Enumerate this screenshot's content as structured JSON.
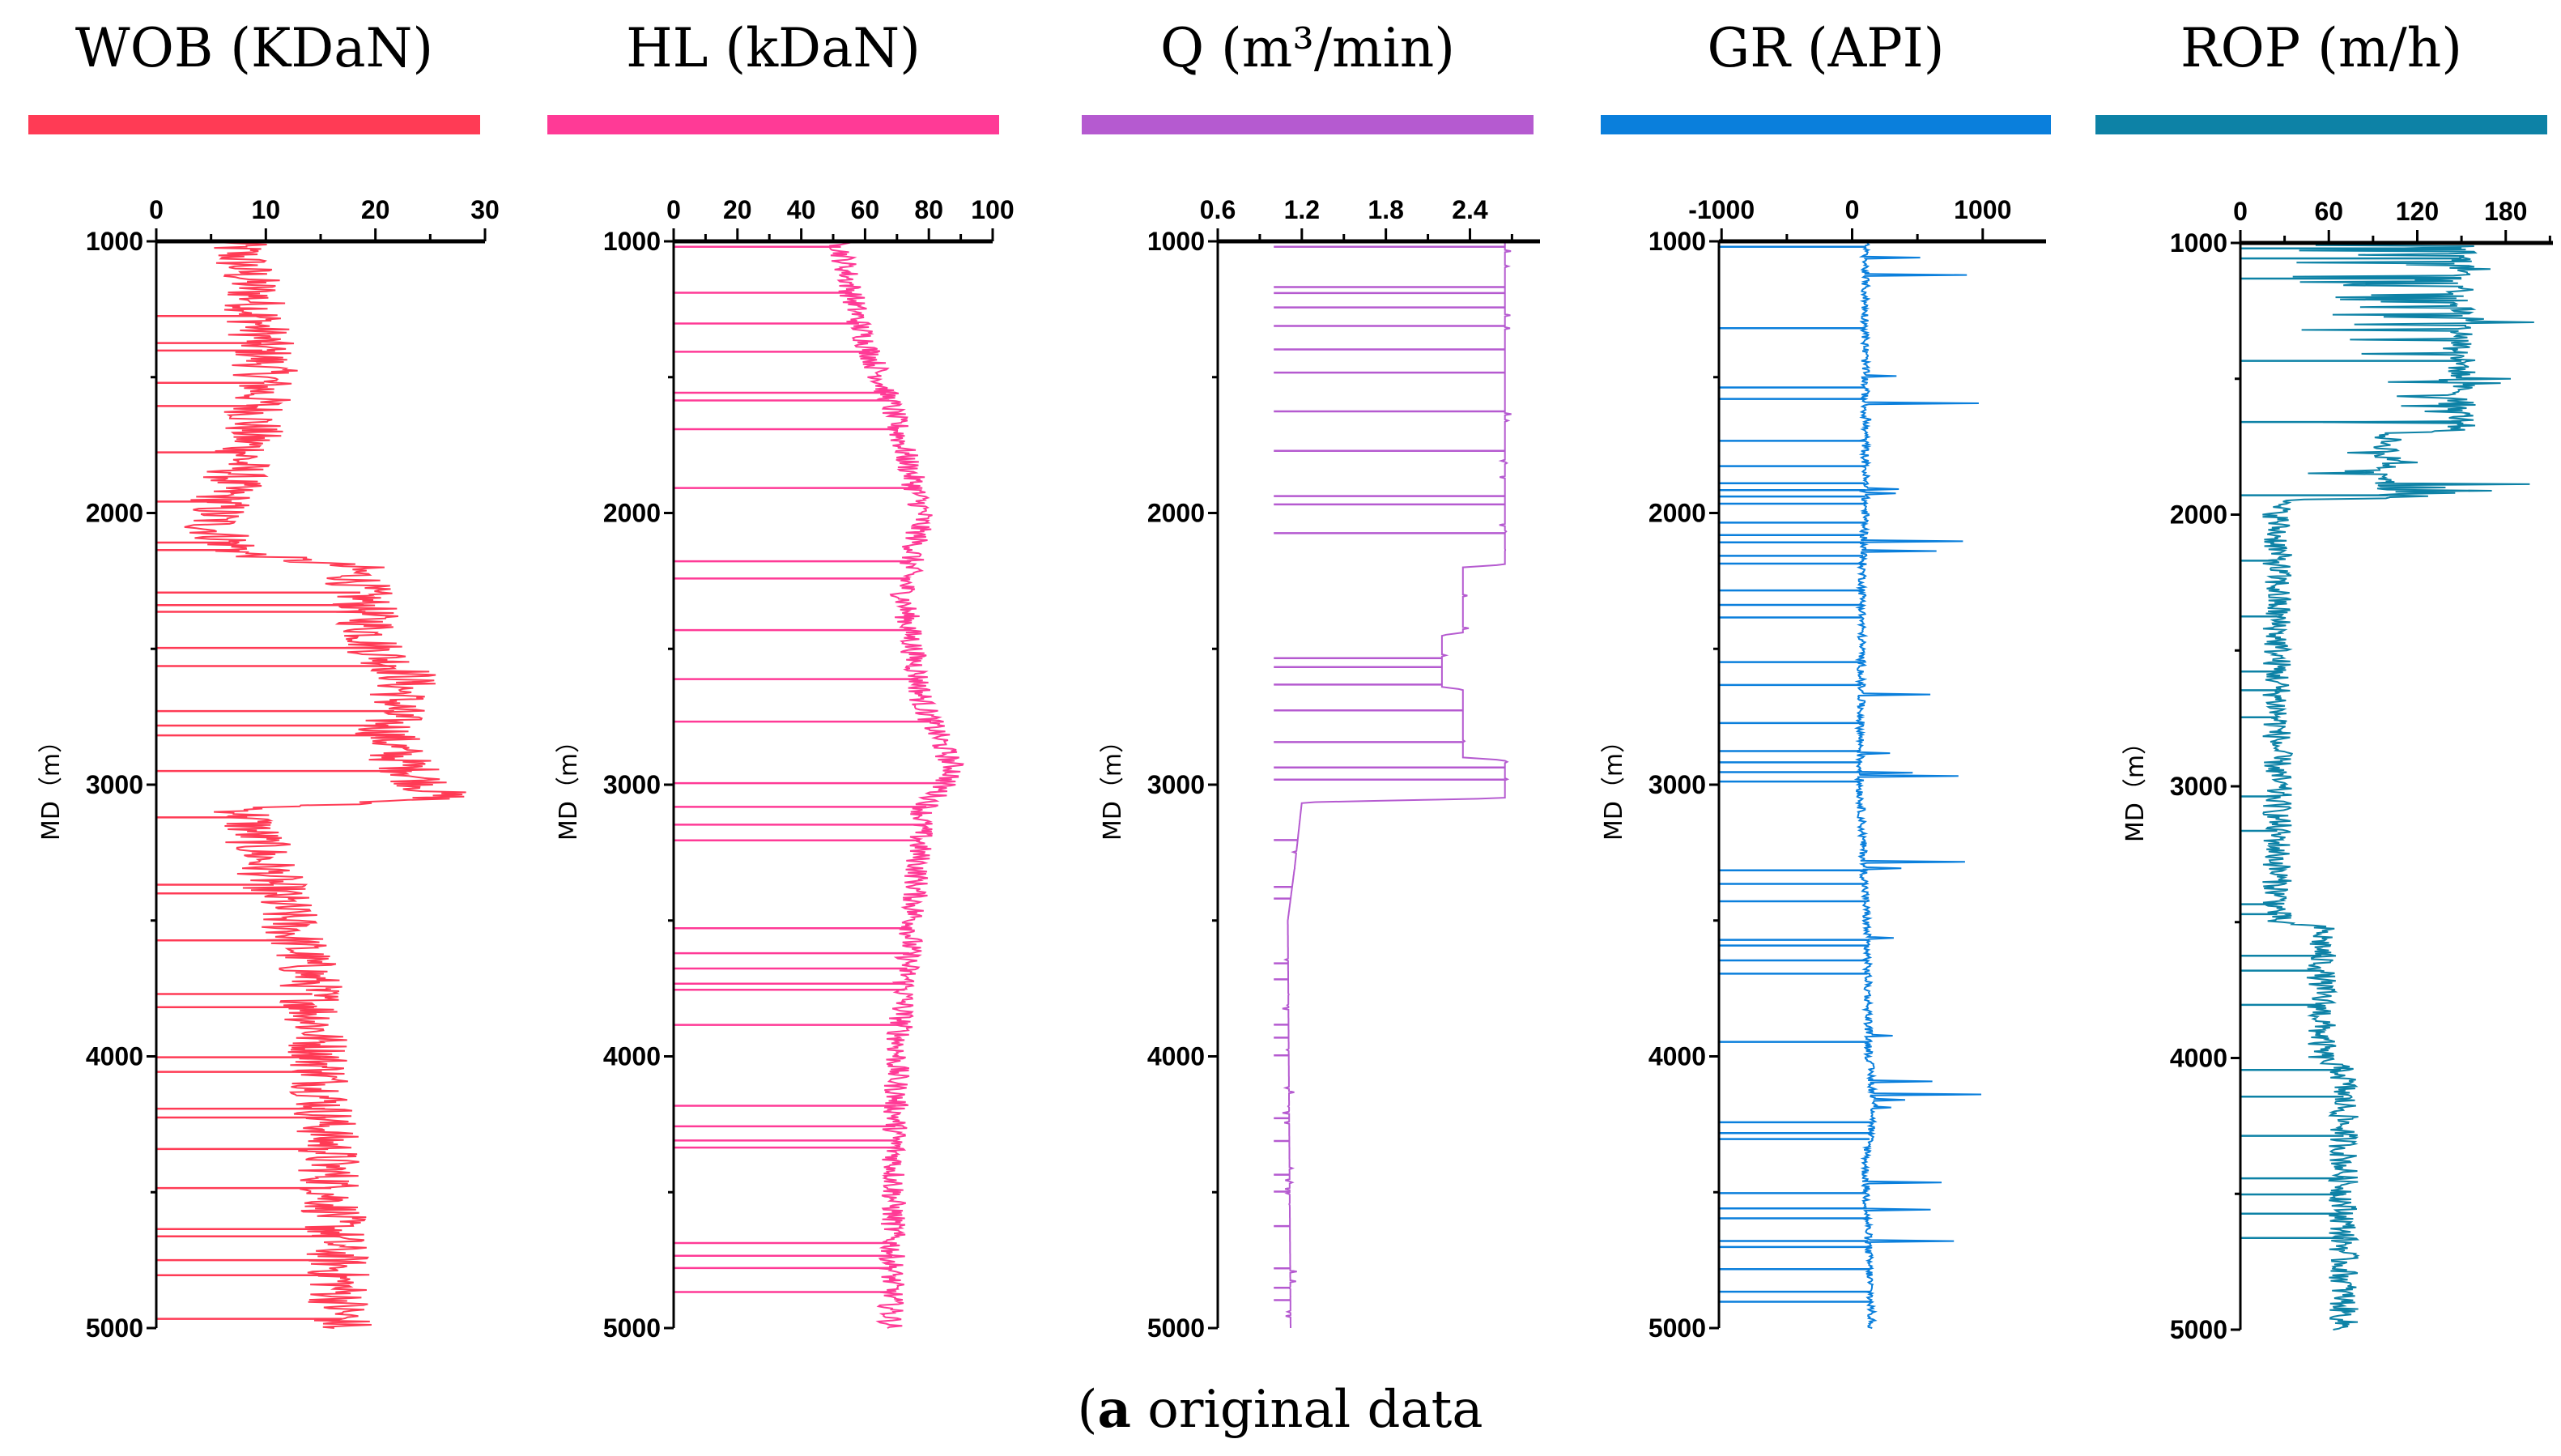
{
  "chart_data": {
    "type": "line",
    "caption_label": "a",
    "caption_text": " original data",
    "ylabel": "MD（m）",
    "ylim": [
      1000,
      5000
    ],
    "yticks": [
      "1000",
      "2000",
      "3000",
      "4000",
      "5000"
    ],
    "tracks": [
      {
        "name": "WOB",
        "title": "WOB (KDaN)",
        "color": "#ff3b55",
        "xlim": [
          0,
          30
        ],
        "xticks": [
          "0",
          "10",
          "20",
          "30"
        ],
        "xtick_values": [
          0,
          10,
          20,
          30
        ],
        "minor_step": 5,
        "profile": [
          [
            1000,
            7
          ],
          [
            1200,
            9
          ],
          [
            1500,
            10
          ],
          [
            1800,
            8
          ],
          [
            1950,
            6
          ],
          [
            2050,
            5
          ],
          [
            2150,
            8
          ],
          [
            2200,
            18
          ],
          [
            2500,
            20
          ],
          [
            2600,
            23
          ],
          [
            2800,
            21
          ],
          [
            2900,
            22
          ],
          [
            3050,
            26
          ],
          [
            3090,
            8
          ],
          [
            3500,
            12
          ],
          [
            3700,
            14
          ],
          [
            4000,
            15
          ],
          [
            4500,
            16
          ],
          [
            5000,
            17
          ]
        ],
        "noise": 3,
        "spike_value": 0
      },
      {
        "name": "HL",
        "title": "HL (kDaN)",
        "color": "#ff3a96",
        "xlim": [
          0,
          100
        ],
        "xticks": [
          "0",
          "20",
          "40",
          "60",
          "80",
          "100"
        ],
        "xtick_values": [
          0,
          20,
          40,
          60,
          80,
          100
        ],
        "minor_step": 10,
        "profile": [
          [
            1000,
            52
          ],
          [
            1300,
            58
          ],
          [
            1600,
            68
          ],
          [
            2000,
            78
          ],
          [
            2300,
            72
          ],
          [
            2700,
            78
          ],
          [
            2950,
            88
          ],
          [
            3100,
            78
          ],
          [
            3500,
            75
          ],
          [
            4000,
            70
          ],
          [
            5000,
            68
          ]
        ],
        "noise": 4,
        "spike_value": 0
      },
      {
        "name": "Q",
        "title": "Q (m³/min)",
        "color": "#b55ad0",
        "xlim": [
          0.6,
          2.9
        ],
        "xticks": [
          "0.6",
          "1.2",
          "1.8",
          "2.4"
        ],
        "xtick_values": [
          0.6,
          1.2,
          1.8,
          2.4
        ],
        "minor_step": 0.3,
        "profile": [
          [
            1000,
            2.65
          ],
          [
            2190,
            2.65
          ],
          [
            2200,
            2.35
          ],
          [
            2440,
            2.35
          ],
          [
            2450,
            2.2
          ],
          [
            2640,
            2.2
          ],
          [
            2650,
            2.35
          ],
          [
            2900,
            2.35
          ],
          [
            2910,
            2.65
          ],
          [
            3050,
            2.65
          ],
          [
            3065,
            1.2
          ],
          [
            3300,
            1.15
          ],
          [
            3500,
            1.1
          ],
          [
            5000,
            1.12
          ]
        ],
        "noise": 0.02,
        "spike_value": 1.0
      },
      {
        "name": "GR",
        "title": "GR (API)",
        "color": "#0a7fdc",
        "xlim": [
          -1020,
          1485
        ],
        "xticks": [
          "-1000",
          "0",
          "1000"
        ],
        "xtick_values": [
          -1000,
          0,
          1000
        ],
        "minor_step": 500,
        "profile": [
          [
            1000,
            100
          ],
          [
            2000,
            100
          ],
          [
            2200,
            80
          ],
          [
            3000,
            60
          ],
          [
            3500,
            110
          ],
          [
            4000,
            130
          ],
          [
            4200,
            170
          ],
          [
            4400,
            100
          ],
          [
            5000,
            150
          ]
        ],
        "noise": 30,
        "spike_value": -1020
      },
      {
        "name": "ROP",
        "title": "ROP (m/h)",
        "color": "#0d82a6",
        "xlim": [
          0,
          212
        ],
        "xticks": [
          "0",
          "60",
          "120",
          "180"
        ],
        "xtick_values": [
          0,
          60,
          120,
          180
        ],
        "minor_step": 30,
        "profile": [
          [
            1000,
            150
          ],
          [
            1690,
            150
          ],
          [
            1700,
            100
          ],
          [
            1940,
            100
          ],
          [
            1950,
            25
          ],
          [
            3500,
            25
          ],
          [
            3520,
            55
          ],
          [
            4000,
            55
          ],
          [
            4050,
            70
          ],
          [
            5000,
            70
          ]
        ],
        "noise": 10,
        "spike_value": 0
      }
    ]
  }
}
